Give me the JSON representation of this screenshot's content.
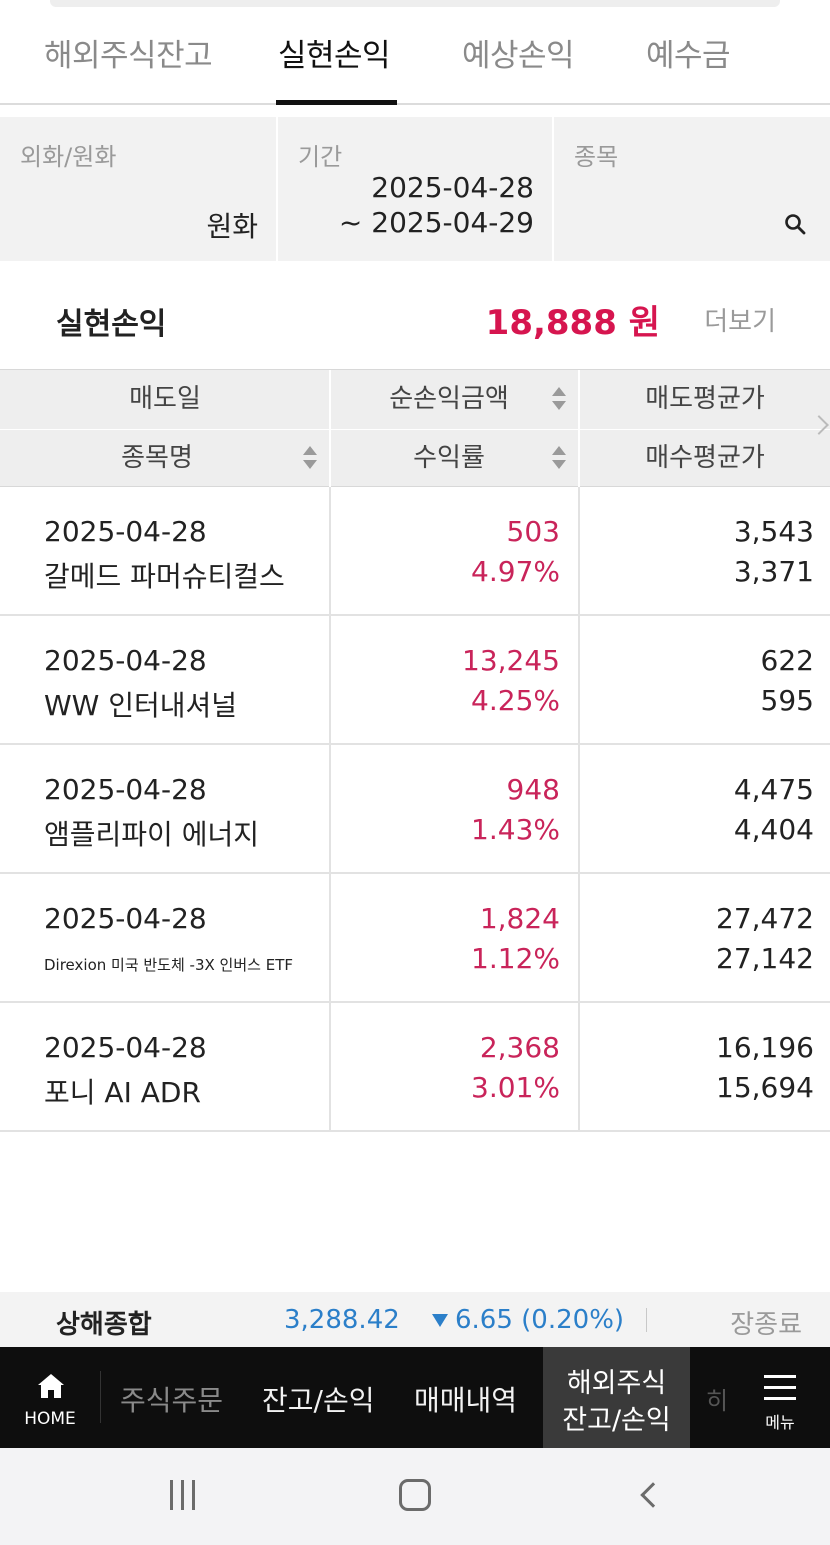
{
  "tabs": [
    {
      "label": "해외주식잔고",
      "active": false
    },
    {
      "label": "실현손익",
      "active": true
    },
    {
      "label": "예상손익",
      "active": false
    },
    {
      "label": "예수금",
      "active": false
    }
  ],
  "filter": {
    "currency": {
      "label": "외화/원화",
      "value": "원화"
    },
    "period": {
      "label": "기간",
      "start": "2025-04-28",
      "end": "~ 2025-04-29"
    },
    "stock": {
      "label": "종목",
      "icon": "search-icon"
    }
  },
  "summary": {
    "title": "실현손익",
    "amount": "18,888 원",
    "more_label": "더보기"
  },
  "table": {
    "headers": {
      "row1": [
        "매도일",
        "순손익금액",
        "매도평균가"
      ],
      "row2": [
        "종목명",
        "수익률",
        "매수평균가"
      ]
    },
    "rows": [
      {
        "date": "2025-04-28",
        "name": "갈메드 파머슈티컬스",
        "pnl": "503",
        "rate": "4.97%",
        "sell_avg": "3,543",
        "buy_avg": "3,371"
      },
      {
        "date": "2025-04-28",
        "name": "WW 인터내셔널",
        "pnl": "13,245",
        "rate": "4.25%",
        "sell_avg": "622",
        "buy_avg": "595"
      },
      {
        "date": "2025-04-28",
        "name": "앰플리파이 에너지",
        "pnl": "948",
        "rate": "1.43%",
        "sell_avg": "4,475",
        "buy_avg": "4,404"
      },
      {
        "date": "2025-04-28",
        "name": "Direxion 미국 반도체 -3X 인버스 ETF",
        "pnl": "1,824",
        "rate": "1.12%",
        "sell_avg": "27,472",
        "buy_avg": "27,142"
      },
      {
        "date": "2025-04-28",
        "name": "포니 AI ADR",
        "pnl": "2,368",
        "rate": "3.01%",
        "sell_avg": "16,196",
        "buy_avg": "15,694"
      }
    ]
  },
  "ticker": {
    "index_name": "상해종합",
    "value": "3,288.42",
    "change": "6.65 (0.20%)",
    "direction": "down",
    "status": "장종료"
  },
  "bottom_nav": {
    "home": "HOME",
    "items": [
      "주식주문",
      "잔고/손익",
      "매매내역"
    ],
    "active_line1": "해외주식",
    "active_line2": "잔고/손익",
    "overflow": "히",
    "menu": "메뉴"
  },
  "colors": {
    "positive": "#c9245a",
    "summary_amount": "#d6154f",
    "index_down": "#2b7fc9",
    "nav_bg": "#0e0e0e"
  }
}
